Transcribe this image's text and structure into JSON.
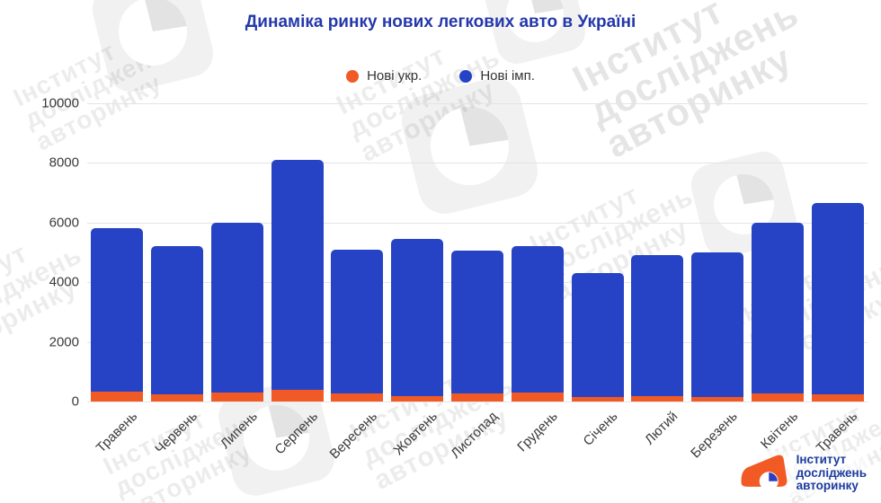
{
  "title": "Динаміка ринку нових легкових авто в Україні",
  "legend": [
    {
      "label": "Нові укр.",
      "color": "#f15a25"
    },
    {
      "label": "Нові імп.",
      "color": "#2743c5"
    }
  ],
  "watermark_text": {
    "line1": "Інститут",
    "line2": "досліджень",
    "line3": "авторинку"
  },
  "brand_logo": {
    "line1": "Інститут",
    "line2": "досліджень",
    "line3": "авторинку",
    "car_color": "#f15a25",
    "pie_color": "#2b3fc0"
  },
  "chart_data": {
    "type": "bar",
    "stacked": true,
    "title": "Динаміка ринку нових легкових авто в Україні",
    "categories": [
      "Травень",
      "Червень",
      "Липень",
      "Серпень",
      "Вересень",
      "Жовтень",
      "Листопад",
      "Грудень",
      "Січень",
      "Лютий",
      "Березень",
      "Квітень",
      "Травень"
    ],
    "series": [
      {
        "name": "Нові укр.",
        "color": "#f15a25",
        "values": [
          320,
          250,
          300,
          400,
          270,
          190,
          280,
          310,
          150,
          180,
          160,
          260,
          230
        ]
      },
      {
        "name": "Нові імп.",
        "color": "#2743c5",
        "values": [
          5480,
          4950,
          5700,
          7700,
          4830,
          5260,
          4770,
          4890,
          4150,
          4720,
          4840,
          5740,
          6420
        ]
      }
    ],
    "totals": [
      5800,
      5200,
      6000,
      8100,
      5100,
      5450,
      5050,
      5200,
      4300,
      4900,
      5000,
      6000,
      6650
    ],
    "xlabel": "",
    "ylabel": "",
    "ylim": [
      0,
      10000
    ],
    "yticks": [
      0,
      2000,
      4000,
      6000,
      8000,
      10000
    ],
    "grid": true,
    "legend_position": "top",
    "x_tick_rotation": -45
  }
}
